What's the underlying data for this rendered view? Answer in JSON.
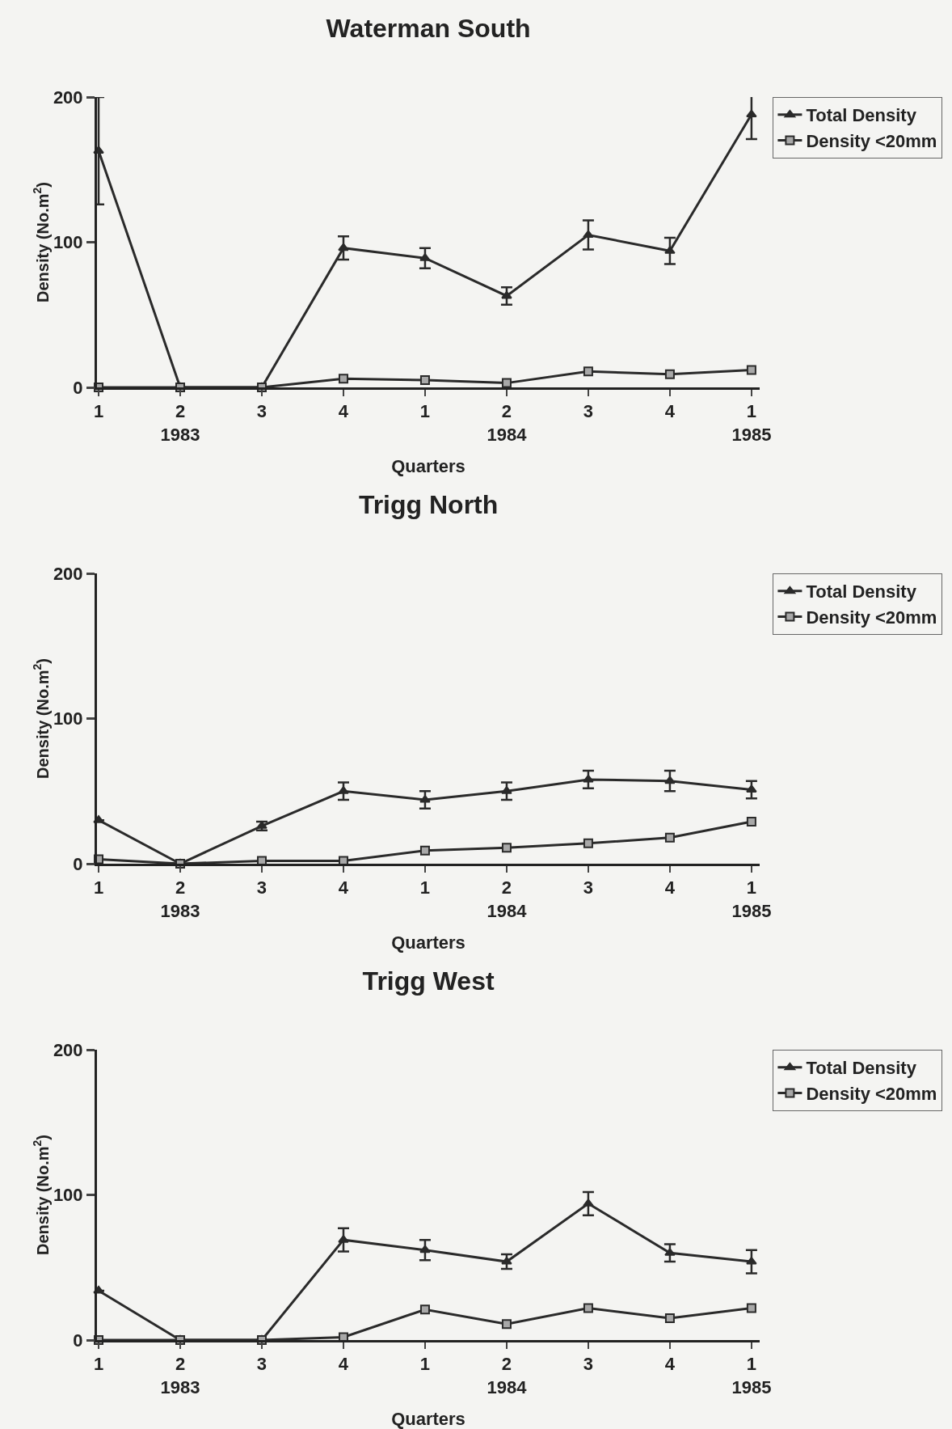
{
  "chart_data": [
    {
      "type": "line",
      "title": "Waterman South",
      "xlabel": "Quarters",
      "ylabel": "Density (No.m$^{2}$)",
      "categories": [
        "1",
        "2\n1983",
        "3",
        "4",
        "1",
        "2\n1984",
        "3",
        "4",
        "1\n1985"
      ],
      "ylim": [
        0,
        200
      ],
      "yticks": [
        0,
        100,
        200
      ],
      "grid": false,
      "legend": "right",
      "series": [
        {
          "name": "Total Density",
          "color": "#2a2a2a",
          "marker": "triangle",
          "values": [
            163,
            0,
            0,
            96,
            89,
            63,
            105,
            94,
            188
          ],
          "errors": [
            37,
            null,
            null,
            8,
            7,
            6,
            10,
            9,
            17
          ]
        },
        {
          "name": "Density <20mm",
          "color": "#2a2a2a",
          "marker": "square",
          "values": [
            0,
            0,
            0,
            6,
            5,
            3,
            11,
            9,
            12
          ]
        }
      ]
    },
    {
      "type": "line",
      "title": "Trigg North",
      "xlabel": "Quarters",
      "ylabel": "Density (No.m$^{2}$)",
      "categories": [
        "1",
        "2\n1983",
        "3",
        "4",
        "1",
        "2\n1984",
        "3",
        "4",
        "1\n1985"
      ],
      "ylim": [
        0,
        200
      ],
      "yticks": [
        0,
        100,
        200
      ],
      "grid": false,
      "legend": "right",
      "series": [
        {
          "name": "Total Density",
          "color": "#2a2a2a",
          "marker": "triangle",
          "values": [
            30,
            0,
            26,
            50,
            44,
            50,
            58,
            57,
            51
          ],
          "errors": [
            null,
            null,
            3,
            6,
            6,
            6,
            6,
            7,
            6
          ]
        },
        {
          "name": "Density <20mm",
          "color": "#2a2a2a",
          "marker": "square",
          "values": [
            3,
            0,
            2,
            2,
            9,
            11,
            14,
            18,
            29
          ]
        }
      ]
    },
    {
      "type": "line",
      "title": "Trigg West",
      "xlabel": "Quarters",
      "ylabel": "Density (No.m$^{2}$)",
      "categories": [
        "1",
        "2\n1983",
        "3",
        "4",
        "1",
        "2\n1984",
        "3",
        "4",
        "1\n1985"
      ],
      "ylim": [
        0,
        200
      ],
      "yticks": [
        0,
        100,
        200
      ],
      "grid": false,
      "legend": "right",
      "series": [
        {
          "name": "Total Density",
          "color": "#2a2a2a",
          "marker": "triangle",
          "values": [
            34,
            0,
            0,
            69,
            62,
            54,
            94,
            60,
            54
          ],
          "errors": [
            null,
            null,
            null,
            8,
            7,
            5,
            8,
            6,
            8
          ]
        },
        {
          "name": "Density <20mm",
          "color": "#2a2a2a",
          "marker": "square",
          "values": [
            0,
            0,
            0,
            2,
            21,
            11,
            22,
            15,
            22
          ]
        }
      ]
    }
  ]
}
